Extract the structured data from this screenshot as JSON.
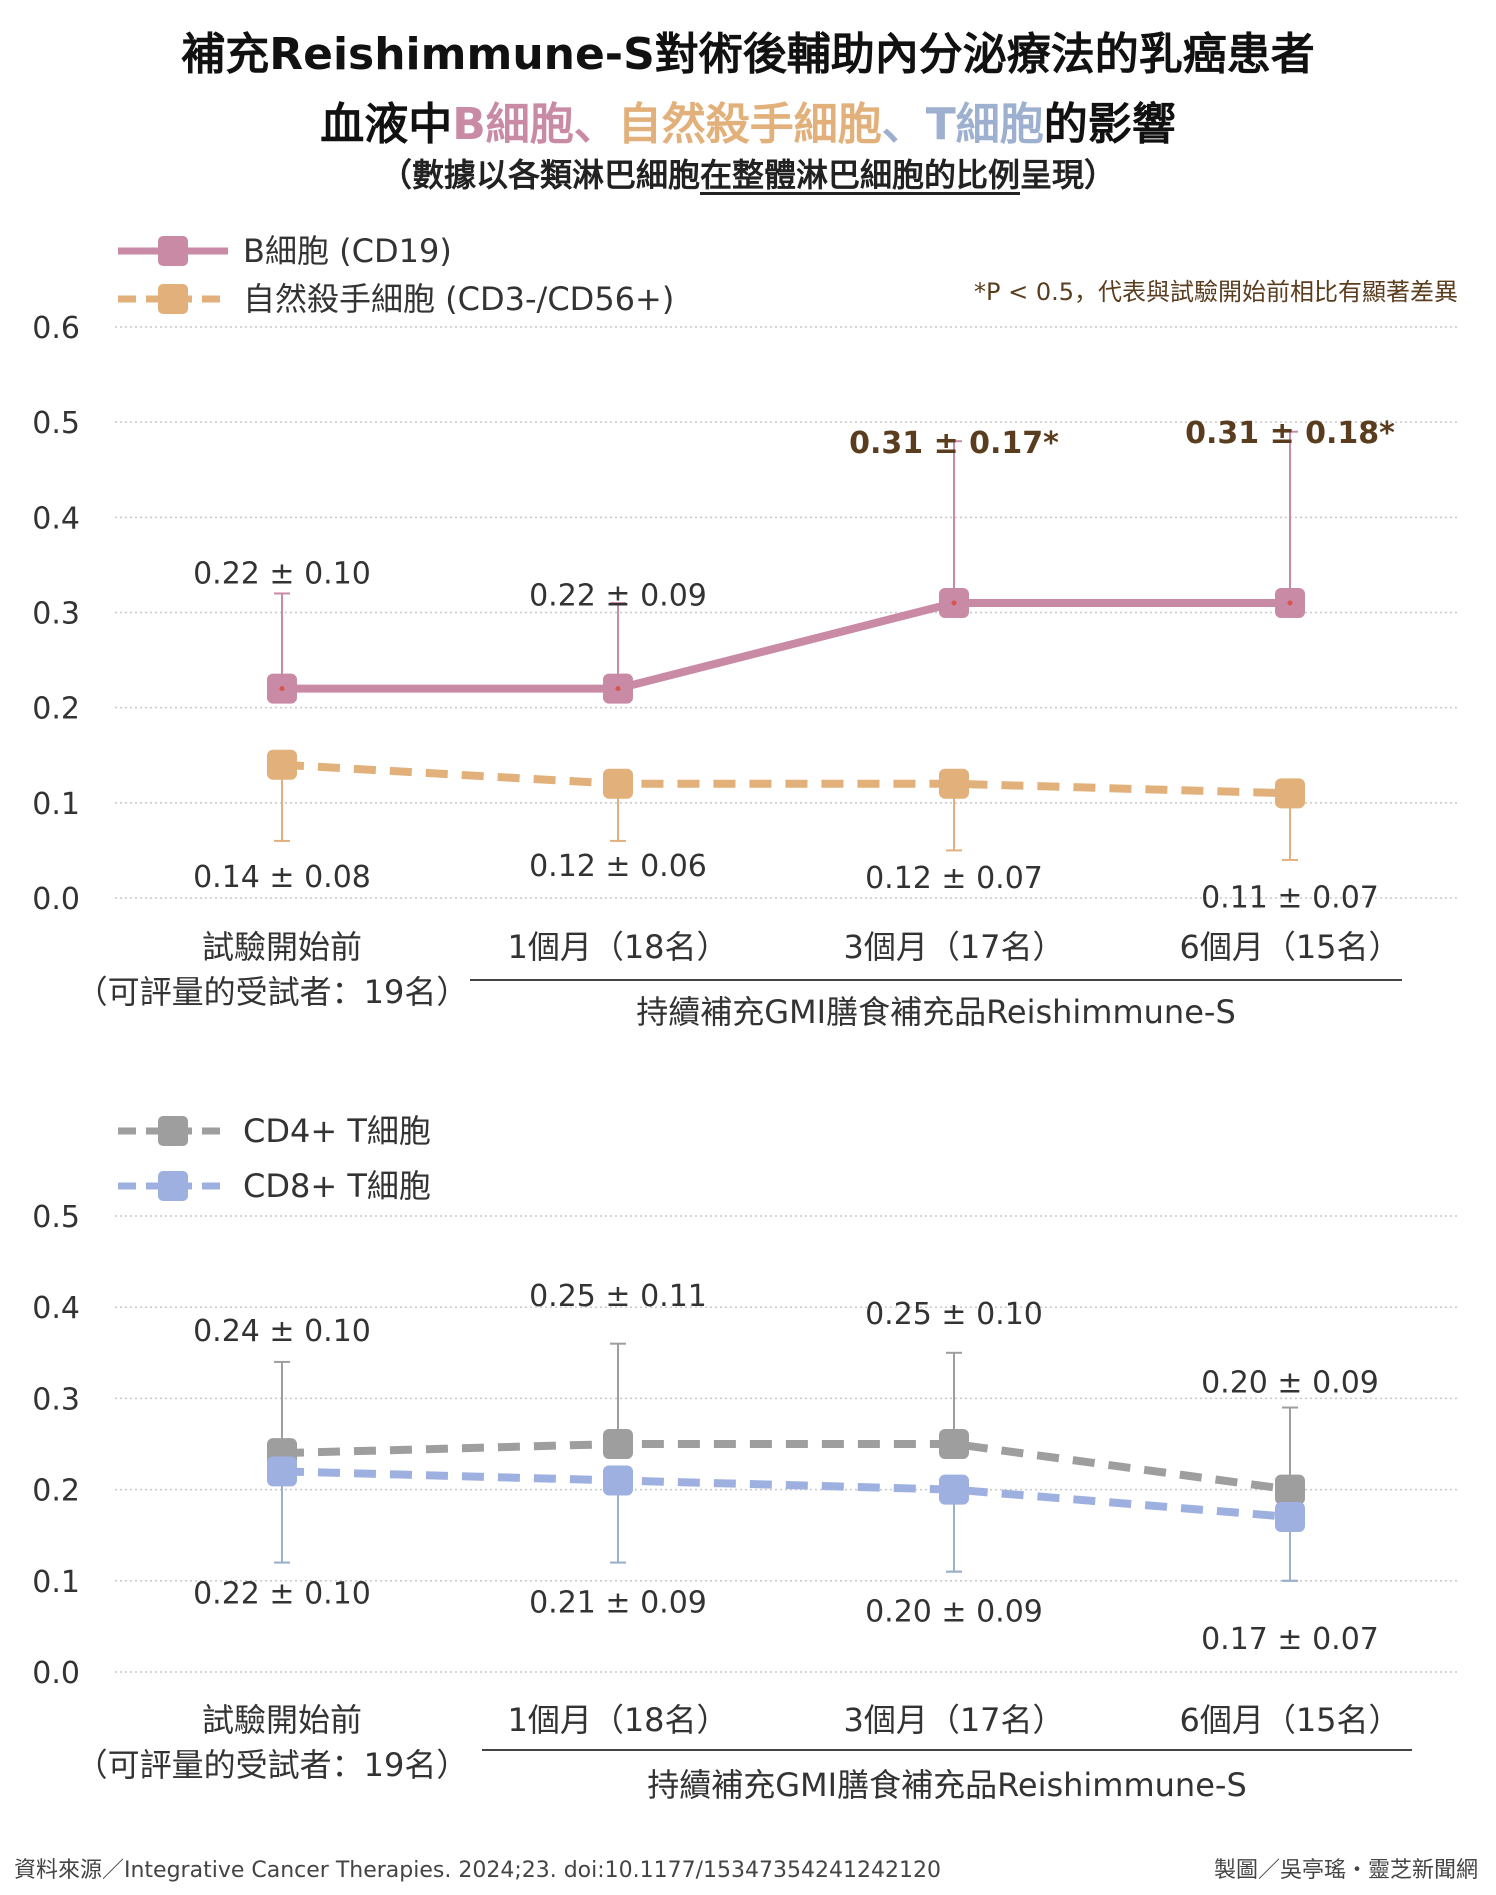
{
  "title": {
    "line1": "補充Reishimmune-S對術後輔助內分泌療法的乳癌患者",
    "line2_prefix": "血液中",
    "line2_b": "B細胞",
    "line2_sep1": "、",
    "line2_nk": "自然殺手細胞",
    "line2_sep2": "、",
    "line2_t": "T細胞",
    "line2_suffix": "的影響",
    "line3_open": "（數據以各類淋巴細胞",
    "line3_underlined": "在整體淋巴細胞的比例",
    "line3_close": "呈現）"
  },
  "colors": {
    "b_cell": "#c98aa6",
    "nk_cell": "#e2b07a",
    "cd4": "#9e9e9e",
    "cd8": "#9db0df",
    "significant_text": "#5a3d1e",
    "gridline": "#c8c8c8",
    "axis_text": "#333333"
  },
  "chart_data": [
    {
      "type": "line",
      "categories": [
        "試驗開始前",
        "1個月（18名）",
        "3個月（17名）",
        "6個月（15名）"
      ],
      "baseline_note": "（可評量的受試者：19名）",
      "group_label": "持續補充GMI膳食補充品Reishimmune-S",
      "significance_note": "*P < 0.5，代表與試驗開始前相比有顯著差異",
      "yticks": [
        "0.0",
        "0.1",
        "0.2",
        "0.3",
        "0.4",
        "0.5",
        "0.6"
      ],
      "ylim": [
        0,
        0.6
      ],
      "grid": true,
      "legend_position": "top-left",
      "series": [
        {
          "name": "B細胞 (CD19)",
          "style": "solid",
          "color": "#c98aa6",
          "values": [
            0.22,
            0.22,
            0.31,
            0.31
          ],
          "sd": [
            0.1,
            0.09,
            0.17,
            0.18
          ],
          "labels": [
            "0.22 ± 0.10",
            "0.22 ± 0.09",
            "0.31 ± 0.17*",
            "0.31 ± 0.18*"
          ],
          "label_bold": [
            false,
            false,
            true,
            true
          ],
          "label_side": "above"
        },
        {
          "name": "自然殺手細胞 (CD3-/CD56+)",
          "style": "dashed",
          "color": "#e2b07a",
          "values": [
            0.14,
            0.12,
            0.12,
            0.11
          ],
          "sd": [
            0.08,
            0.06,
            0.07,
            0.07
          ],
          "labels": [
            "0.14 ± 0.08",
            "0.12 ± 0.06",
            "0.12 ± 0.07",
            "0.11 ± 0.07"
          ],
          "label_bold": [
            false,
            false,
            false,
            false
          ],
          "label_side": "below"
        }
      ]
    },
    {
      "type": "line",
      "categories": [
        "試驗開始前",
        "1個月（18名）",
        "3個月（17名）",
        "6個月（15名）"
      ],
      "baseline_note": "（可評量的受試者：19名）",
      "group_label": "持續補充GMI膳食補充品Reishimmune-S",
      "yticks": [
        "0.0",
        "0.1",
        "0.2",
        "0.3",
        "0.4",
        "0.5"
      ],
      "ylim": [
        0,
        0.5
      ],
      "grid": true,
      "legend_position": "top-left",
      "series": [
        {
          "name": "CD4+ T細胞",
          "style": "dashed",
          "color": "#9e9e9e",
          "values": [
            0.24,
            0.25,
            0.25,
            0.2
          ],
          "sd": [
            0.1,
            0.11,
            0.1,
            0.09
          ],
          "labels": [
            "0.24 ± 0.10",
            "0.25 ± 0.11",
            "0.25 ± 0.10",
            "0.20 ± 0.09"
          ],
          "label_bold": [
            false,
            false,
            false,
            false
          ],
          "label_side": "above"
        },
        {
          "name": "CD8+ T細胞",
          "style": "dashed",
          "color": "#9db0df",
          "values": [
            0.22,
            0.21,
            0.2,
            0.17
          ],
          "sd": [
            0.1,
            0.09,
            0.09,
            0.07
          ],
          "labels": [
            "0.22 ± 0.10",
            "0.21 ± 0.09",
            "0.20 ± 0.09",
            "0.17 ± 0.07"
          ],
          "label_bold": [
            false,
            false,
            false,
            false
          ],
          "label_side": "below"
        }
      ]
    }
  ],
  "footer": {
    "source": "資料來源／Integrative Cancer Therapies. 2024;23. doi:10.1177/15347354241242120",
    "credit": "製圖／吳亭瑤・靈芝新聞網"
  }
}
